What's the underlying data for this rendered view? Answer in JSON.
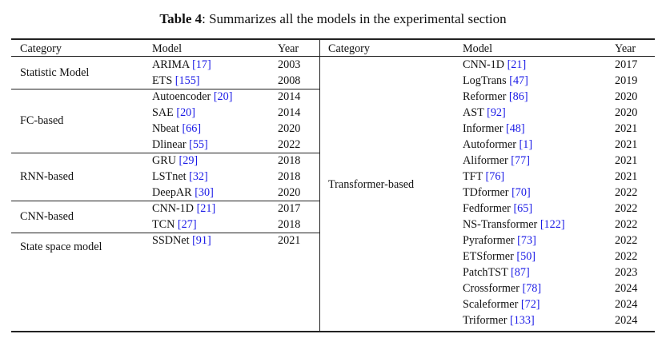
{
  "caption": {
    "label": "Table 4",
    "text": ": Summarizes all the models in the experimental section"
  },
  "colors": {
    "text": "#111111",
    "citation": "#1a1ae6",
    "rule": "#222222"
  },
  "headers": {
    "left": {
      "category": "Category",
      "model": "Model",
      "year": "Year"
    },
    "right": {
      "category": "Category",
      "model": "Model",
      "year": "Year"
    }
  },
  "left_groups": [
    {
      "category": "Statistic Model",
      "rows": [
        {
          "model": "ARIMA",
          "ref": "[17]",
          "year": "2003"
        },
        {
          "model": "ETS",
          "ref": "[155]",
          "year": "2008"
        }
      ]
    },
    {
      "category": "FC-based",
      "rows": [
        {
          "model": "Autoencoder",
          "ref": "[20]",
          "year": "2014"
        },
        {
          "model": "SAE",
          "ref": "[20]",
          "year": "2014"
        },
        {
          "model": "Nbeat",
          "ref": "[66]",
          "year": "2020"
        },
        {
          "model": "Dlinear",
          "ref": "[55]",
          "year": "2022"
        }
      ]
    },
    {
      "category": "RNN-based",
      "rows": [
        {
          "model": "GRU",
          "ref": "[29]",
          "year": "2018"
        },
        {
          "model": "LSTnet",
          "ref": "[32]",
          "year": "2018"
        },
        {
          "model": "DeepAR",
          "ref": "[30]",
          "year": "2020"
        }
      ]
    },
    {
      "category": "CNN-based",
      "rows": [
        {
          "model": "CNN-1D",
          "ref": "[21]",
          "year": "2017"
        },
        {
          "model": "TCN",
          "ref": "[27]",
          "year": "2018"
        }
      ]
    },
    {
      "category": "State space model",
      "rows": [
        {
          "model": "SSDNet",
          "ref": "[91]",
          "year": "2021"
        }
      ]
    }
  ],
  "right_group": {
    "category": "Transformer-based",
    "rows": [
      {
        "model": "CNN-1D",
        "ref": "[21]",
        "year": "2017"
      },
      {
        "model": "LogTrans",
        "ref": "[47]",
        "year": "2019"
      },
      {
        "model": "Reformer",
        "ref": "[86]",
        "year": "2020"
      },
      {
        "model": "AST",
        "ref": "[92]",
        "year": "2020"
      },
      {
        "model": "Informer",
        "ref": "[48]",
        "year": "2021"
      },
      {
        "model": "Autoformer",
        "ref": "[1]",
        "year": "2021"
      },
      {
        "model": "Aliformer",
        "ref": "[77]",
        "year": "2021"
      },
      {
        "model": "TFT",
        "ref": "[76]",
        "year": "2021"
      },
      {
        "model": "TDformer",
        "ref": "[70]",
        "year": "2022"
      },
      {
        "model": "Fedformer",
        "ref": "[65]",
        "year": "2022"
      },
      {
        "model": "NS-Transformer",
        "ref": "[122]",
        "year": "2022"
      },
      {
        "model": "Pyraformer",
        "ref": "[73]",
        "year": "2022"
      },
      {
        "model": "ETSformer",
        "ref": "[50]",
        "year": "2022"
      },
      {
        "model": "PatchTST",
        "ref": "[87]",
        "year": "2023"
      },
      {
        "model": "Crossformer",
        "ref": "[78]",
        "year": "2024"
      },
      {
        "model": "Scaleformer",
        "ref": "[72]",
        "year": "2024"
      },
      {
        "model": "Triformer",
        "ref": "[133]",
        "year": "2024"
      }
    ]
  }
}
